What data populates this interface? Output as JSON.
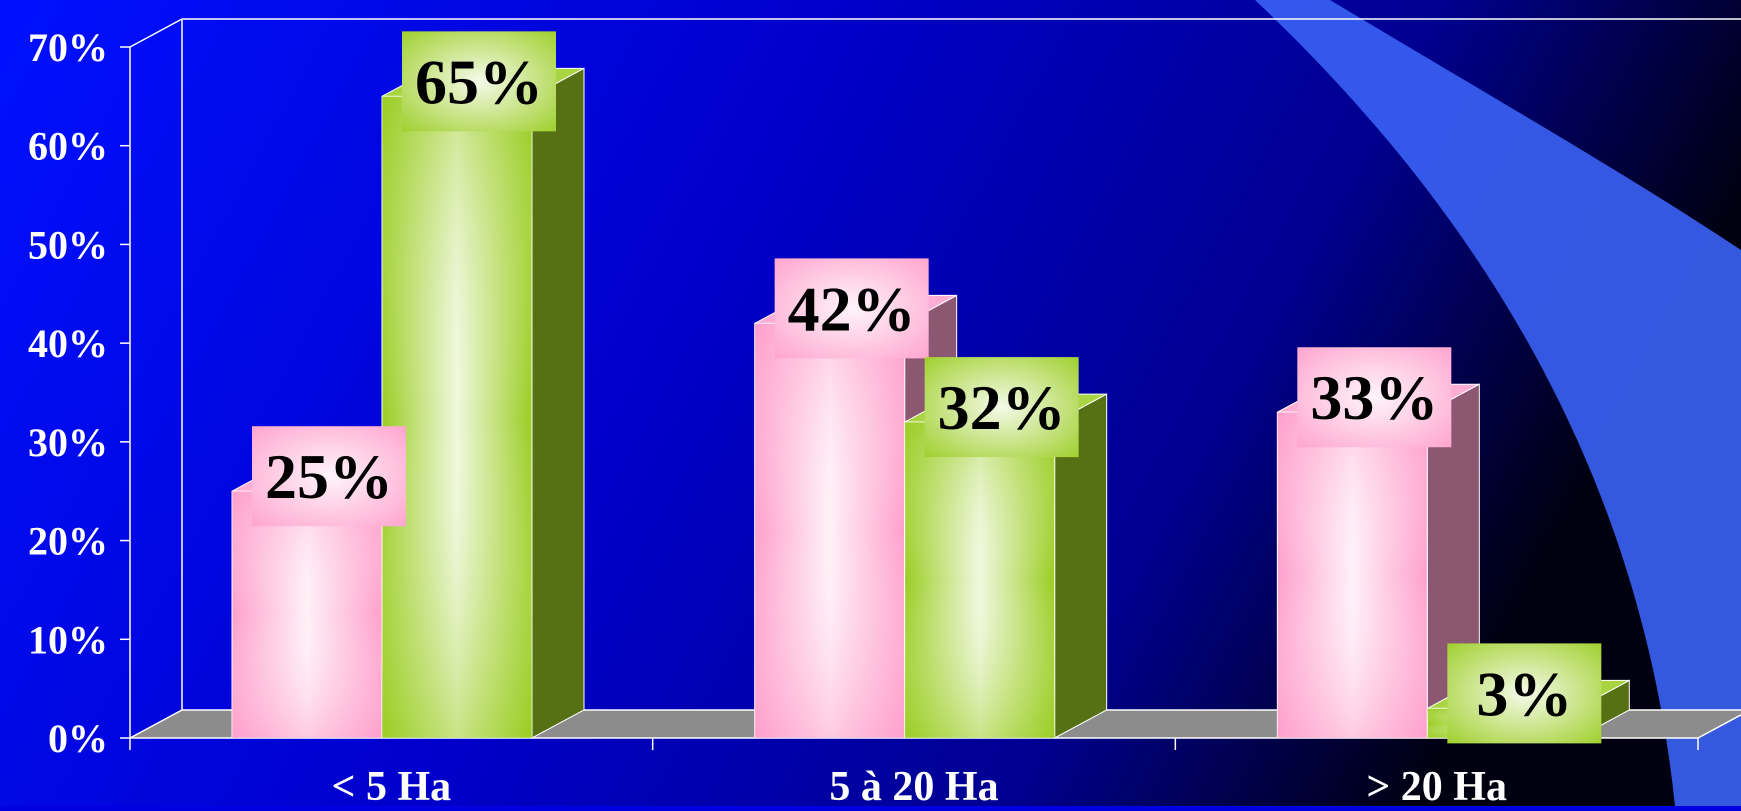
{
  "chart_data": {
    "type": "bar",
    "style": "3d-clustered-column",
    "title": "",
    "xlabel": "",
    "ylabel": "",
    "categories": [
      "< 5 Ha",
      "5 à 20 Ha",
      "> 20 Ha"
    ],
    "series": [
      {
        "color": "#ff9fcc",
        "values": [
          25,
          42,
          33
        ],
        "labels": [
          "25%",
          "42%",
          "33%"
        ]
      },
      {
        "color": "#9acd22",
        "values": [
          65,
          32,
          3
        ],
        "labels": [
          "65%",
          "32%",
          "3%"
        ]
      }
    ],
    "ylim": [
      0,
      70
    ],
    "yticks": [
      0,
      10,
      20,
      30,
      40,
      50,
      60,
      70
    ],
    "ytick_labels": [
      "0%",
      "10%",
      "20%",
      "30%",
      "40%",
      "50%",
      "60%",
      "70%"
    ],
    "legend": "none",
    "grid": false
  },
  "theme": {
    "background_gradient": [
      "#0010ff",
      "#0000cc",
      "#000090",
      "#000010"
    ],
    "swoosh": "#3a62f5",
    "text": "#ffffff",
    "data_label_text": "#000000",
    "axis_line": "#ffffff",
    "floor": "#8c8c8c"
  }
}
